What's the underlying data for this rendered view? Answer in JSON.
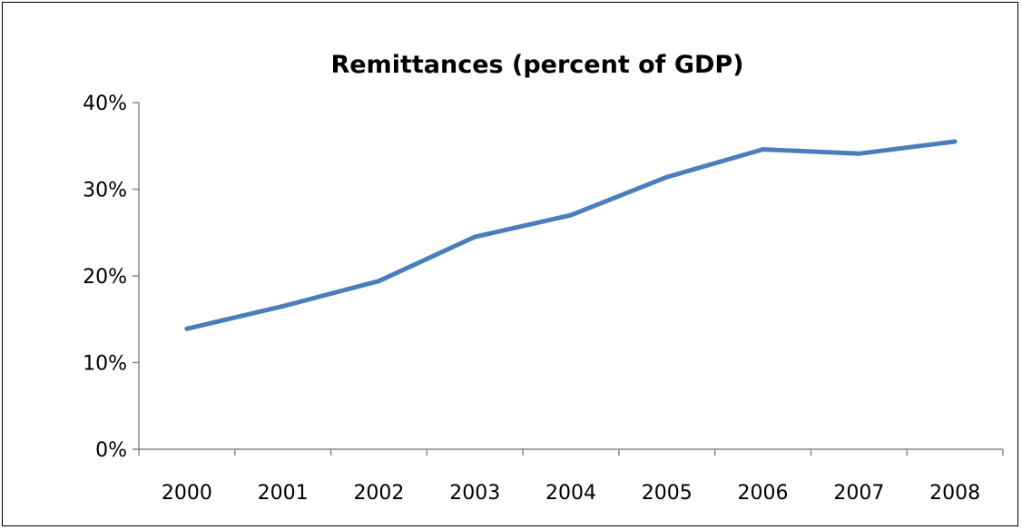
{
  "chart_data": {
    "type": "line",
    "title": "Remittances (percent of GDP)",
    "xlabel": "",
    "ylabel": "",
    "categories": [
      "2000",
      "2001",
      "2002",
      "2003",
      "2004",
      "2005",
      "2006",
      "2007",
      "2008"
    ],
    "series": [
      {
        "values": [
          13.9,
          16.5,
          19.4,
          24.5,
          27.0,
          31.4,
          34.6,
          34.1,
          35.5
        ],
        "color": "#4a7ebb"
      }
    ],
    "ylim": [
      0,
      40
    ],
    "yticks": [
      0,
      10,
      20,
      30,
      40
    ],
    "ytick_labels": [
      "0%",
      "10%",
      "20%",
      "30%",
      "40%"
    ],
    "grid": false,
    "legend": "none"
  }
}
